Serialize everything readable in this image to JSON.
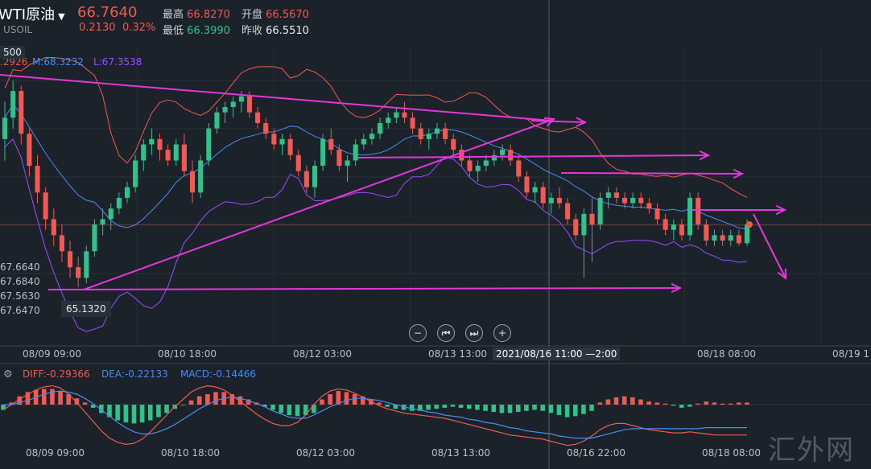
{
  "header": {
    "title": "WTI原油",
    "code": "USOIL",
    "last": "66.7640",
    "change": "0.2130",
    "change_pct": "0.32%",
    "high_label": "最高",
    "high": "66.8270",
    "open_label": "开盘",
    "open": "66.5670",
    "low_label": "最低",
    "low": "66.3990",
    "prev_label": "昨收",
    "prev": "66.5510",
    "boll_u": ".2926",
    "boll_m": "M:68.3232",
    "boll_l": "L:67.3538"
  },
  "price_marks": {
    "high_mark": "500",
    "low_mark": "65.1320"
  },
  "left_axis_labels": [
    "67.6640",
    "67.6840",
    "67.5630",
    "67.6470"
  ],
  "controls": {
    "zoom_out": "−",
    "prev": "⏮",
    "next": "⏭",
    "zoom_in": "+"
  },
  "crosshair_time": "2021/08/16 11:00",
  "crosshair_suffix": "—2:00",
  "macd_header": {
    "diff": "DIFF:-0.29366",
    "dea": "DEA:-0.22133",
    "macd": "MACD:-0.14466"
  },
  "watermark": "汇外网",
  "colors": {
    "bg": "#1b2229",
    "up": "#2fc28a",
    "down": "#f05a52",
    "mid": "#4a8cf0",
    "lower": "#9b4dff",
    "annotation": "#e636d9"
  },
  "chart_data": [
    {
      "type": "candlestick",
      "title": "WTI原油 USOIL",
      "indicators": [
        "BOLL upper",
        "BOLL mid",
        "BOLL lower"
      ],
      "x_tick_labels": [
        "08/09 09:00",
        "08/10 18:00",
        "08/12 03:00",
        "08/13 13:00",
        "08/16 22:00",
        "08/18 08:00",
        "08/19 1"
      ],
      "annotation_points": {
        "low": 65.132
      },
      "ohlc": [
        [
          67.9,
          68.6,
          67.5,
          68.3
        ],
        [
          68.3,
          69.0,
          68.1,
          68.8
        ],
        [
          68.8,
          68.9,
          67.8,
          68.0
        ],
        [
          68.0,
          68.1,
          67.2,
          67.4
        ],
        [
          67.4,
          67.6,
          66.7,
          66.9
        ],
        [
          66.9,
          67.0,
          66.2,
          66.4
        ],
        [
          66.4,
          66.6,
          65.9,
          66.1
        ],
        [
          66.1,
          66.3,
          65.6,
          65.8
        ],
        [
          65.8,
          66.0,
          65.3,
          65.5
        ],
        [
          65.5,
          65.7,
          65.13,
          65.3
        ],
        [
          65.3,
          65.9,
          65.2,
          65.8
        ],
        [
          65.8,
          66.4,
          65.7,
          66.3
        ],
        [
          66.3,
          66.6,
          66.1,
          66.4
        ],
        [
          66.4,
          66.7,
          66.2,
          66.6
        ],
        [
          66.6,
          66.9,
          66.5,
          66.8
        ],
        [
          66.8,
          67.1,
          66.7,
          67.0
        ],
        [
          67.0,
          67.6,
          66.9,
          67.5
        ],
        [
          67.5,
          67.9,
          67.3,
          67.8
        ],
        [
          67.8,
          68.1,
          67.6,
          67.9
        ],
        [
          67.9,
          68.0,
          67.5,
          67.7
        ],
        [
          67.7,
          67.8,
          67.4,
          67.5
        ],
        [
          67.5,
          67.9,
          67.4,
          67.8
        ],
        [
          67.8,
          68.0,
          67.2,
          67.3
        ],
        [
          67.3,
          67.5,
          66.7,
          66.9
        ],
        [
          66.9,
          67.6,
          66.8,
          67.5
        ],
        [
          67.5,
          68.2,
          67.4,
          68.1
        ],
        [
          68.1,
          68.5,
          68.0,
          68.4
        ],
        [
          68.4,
          68.6,
          68.2,
          68.5
        ],
        [
          68.5,
          68.7,
          68.3,
          68.6
        ],
        [
          68.6,
          68.8,
          68.4,
          68.7
        ],
        [
          68.7,
          68.8,
          68.3,
          68.4
        ],
        [
          68.4,
          68.5,
          68.1,
          68.2
        ],
        [
          68.2,
          68.3,
          67.9,
          68.0
        ],
        [
          68.0,
          68.1,
          67.7,
          67.8
        ],
        [
          67.8,
          68.0,
          67.6,
          67.9
        ],
        [
          67.9,
          68.0,
          67.5,
          67.6
        ],
        [
          67.6,
          67.7,
          67.2,
          67.3
        ],
        [
          67.3,
          67.4,
          66.9,
          67.0
        ],
        [
          67.0,
          67.5,
          66.8,
          67.4
        ],
        [
          67.4,
          68.0,
          67.3,
          67.9
        ],
        [
          67.9,
          68.1,
          67.6,
          67.7
        ],
        [
          67.7,
          67.8,
          67.3,
          67.4
        ],
        [
          67.4,
          67.6,
          67.1,
          67.5
        ],
        [
          67.5,
          67.9,
          67.4,
          67.8
        ],
        [
          67.8,
          68.0,
          67.7,
          67.9
        ],
        [
          67.9,
          68.1,
          67.8,
          68.0
        ],
        [
          68.0,
          68.3,
          67.9,
          68.2
        ],
        [
          68.2,
          68.4,
          68.1,
          68.3
        ],
        [
          68.3,
          68.5,
          68.2,
          68.4
        ],
        [
          68.4,
          68.6,
          68.2,
          68.3
        ],
        [
          68.3,
          68.4,
          68.0,
          68.1
        ],
        [
          68.1,
          68.2,
          67.8,
          67.9
        ],
        [
          67.9,
          68.1,
          67.7,
          68.0
        ],
        [
          68.0,
          68.2,
          67.9,
          68.1
        ],
        [
          68.1,
          68.2,
          67.8,
          67.9
        ],
        [
          67.9,
          68.0,
          67.6,
          67.7
        ],
        [
          67.7,
          67.8,
          67.4,
          67.5
        ],
        [
          67.5,
          67.6,
          67.2,
          67.3
        ],
        [
          67.3,
          67.5,
          67.1,
          67.4
        ],
        [
          67.4,
          67.6,
          67.3,
          67.5
        ],
        [
          67.5,
          67.7,
          67.4,
          67.6
        ],
        [
          67.6,
          67.8,
          67.5,
          67.7
        ],
        [
          67.7,
          67.8,
          67.4,
          67.5
        ],
        [
          67.5,
          67.6,
          67.1,
          67.2
        ],
        [
          67.2,
          67.3,
          66.8,
          66.9
        ],
        [
          66.9,
          67.1,
          66.7,
          67.0
        ],
        [
          67.0,
          67.1,
          66.6,
          66.7
        ],
        [
          66.7,
          66.9,
          66.5,
          66.8
        ],
        [
          66.8,
          67.0,
          66.6,
          66.7
        ],
        [
          66.7,
          66.8,
          66.3,
          66.4
        ],
        [
          66.4,
          66.5,
          66.0,
          66.1
        ],
        [
          66.1,
          66.6,
          65.3,
          66.5
        ],
        [
          66.5,
          66.8,
          65.6,
          66.3
        ],
        [
          66.3,
          66.9,
          66.2,
          66.8
        ],
        [
          66.8,
          67.0,
          66.6,
          66.9
        ],
        [
          66.9,
          67.0,
          66.7,
          66.8
        ],
        [
          66.8,
          66.9,
          66.6,
          66.7
        ],
        [
          66.7,
          66.9,
          66.6,
          66.8
        ],
        [
          66.8,
          66.9,
          66.6,
          66.7
        ],
        [
          66.7,
          66.8,
          66.5,
          66.6
        ],
        [
          66.6,
          66.7,
          66.3,
          66.4
        ],
        [
          66.4,
          66.5,
          66.1,
          66.2
        ],
        [
          66.2,
          66.4,
          66.0,
          66.3
        ],
        [
          66.3,
          66.4,
          66.0,
          66.1
        ],
        [
          66.1,
          66.9,
          66.0,
          66.8
        ],
        [
          66.8,
          66.9,
          66.2,
          66.3
        ],
        [
          66.3,
          66.4,
          65.9,
          66.0
        ],
        [
          66.0,
          66.2,
          65.9,
          66.1
        ],
        [
          66.1,
          66.2,
          65.9,
          66.0
        ],
        [
          66.0,
          66.2,
          65.9,
          66.1
        ],
        [
          66.1,
          66.2,
          65.9,
          65.95
        ],
        [
          65.95,
          66.4,
          65.9,
          66.3
        ]
      ]
    },
    {
      "type": "bar",
      "title": "MACD",
      "series": [
        {
          "name": "MACD",
          "values": [
            -0.05,
            0.02,
            0.08,
            0.12,
            0.14,
            0.15,
            0.15,
            0.13,
            0.1,
            0.06,
            0.02,
            -0.03,
            -0.08,
            -0.12,
            -0.15,
            -0.17,
            -0.18,
            -0.17,
            -0.15,
            -0.12,
            -0.08,
            -0.04,
            0.0,
            0.04,
            0.08,
            0.1,
            0.12,
            0.12,
            0.1,
            0.08,
            0.05,
            0.02,
            -0.02,
            -0.05,
            -0.08,
            -0.1,
            -0.11,
            -0.1,
            -0.08,
            0.05,
            0.1,
            0.13,
            0.12,
            0.1,
            0.08,
            0.05,
            0.02,
            -0.02,
            -0.04,
            -0.05,
            -0.06,
            -0.06,
            -0.05,
            -0.04,
            -0.03,
            -0.02,
            -0.03,
            -0.04,
            -0.05,
            -0.06,
            -0.07,
            -0.08,
            -0.08,
            -0.07,
            -0.06,
            -0.05,
            -0.06,
            -0.08,
            -0.1,
            -0.12,
            -0.11,
            -0.09,
            -0.06,
            0.02,
            0.05,
            0.07,
            0.08,
            0.07,
            0.05,
            0.03,
            0.02,
            0.01,
            -0.01,
            -0.03,
            -0.02,
            0.01,
            0.03,
            0.02,
            0.01,
            0.01,
            0.02,
            0.02
          ]
        },
        {
          "name": "DIFF",
          "values": [
            -0.05,
            0.0,
            0.05,
            0.1,
            0.14,
            0.17,
            0.18,
            0.16,
            0.1,
            0.02,
            -0.07,
            -0.16,
            -0.25,
            -0.32,
            -0.36,
            -0.38,
            -0.37,
            -0.33,
            -0.26,
            -0.18,
            -0.1,
            -0.02,
            0.05,
            0.12,
            0.16,
            0.18,
            0.17,
            0.14,
            0.09,
            0.03,
            -0.03,
            -0.09,
            -0.14,
            -0.18,
            -0.2,
            -0.2,
            -0.17,
            -0.1,
            0.0,
            0.08,
            0.13,
            0.15,
            0.14,
            0.11,
            0.07,
            0.03,
            -0.01,
            -0.04,
            -0.06,
            -0.08,
            -0.09,
            -0.1,
            -0.11,
            -0.12,
            -0.13,
            -0.15,
            -0.17,
            -0.19,
            -0.21,
            -0.23,
            -0.25,
            -0.27,
            -0.29,
            -0.3,
            -0.31,
            -0.32,
            -0.33,
            -0.35,
            -0.37,
            -0.39,
            -0.38,
            -0.35,
            -0.3,
            -0.24,
            -0.2,
            -0.18,
            -0.18,
            -0.2,
            -0.22,
            -0.24,
            -0.25,
            -0.26,
            -0.27,
            -0.27,
            -0.26,
            -0.27,
            -0.28,
            -0.29,
            -0.29,
            -0.29,
            -0.29,
            -0.29
          ]
        },
        {
          "name": "DEA",
          "values": [
            0.0,
            0.0,
            0.02,
            0.04,
            0.07,
            0.1,
            0.12,
            0.13,
            0.12,
            0.1,
            0.06,
            0.01,
            -0.05,
            -0.11,
            -0.17,
            -0.22,
            -0.26,
            -0.28,
            -0.28,
            -0.26,
            -0.23,
            -0.19,
            -0.14,
            -0.09,
            -0.04,
            0.0,
            0.04,
            0.06,
            0.07,
            0.06,
            0.04,
            0.01,
            -0.02,
            -0.06,
            -0.09,
            -0.12,
            -0.13,
            -0.13,
            -0.1,
            -0.06,
            -0.02,
            0.01,
            0.04,
            0.06,
            0.06,
            0.05,
            0.04,
            0.02,
            0.0,
            -0.02,
            -0.04,
            -0.05,
            -0.07,
            -0.08,
            -0.1,
            -0.11,
            -0.12,
            -0.14,
            -0.15,
            -0.17,
            -0.18,
            -0.2,
            -0.22,
            -0.23,
            -0.25,
            -0.26,
            -0.27,
            -0.28,
            -0.3,
            -0.31,
            -0.32,
            -0.32,
            -0.32,
            -0.3,
            -0.28,
            -0.26,
            -0.24,
            -0.23,
            -0.23,
            -0.23,
            -0.23,
            -0.23,
            -0.23,
            -0.23,
            -0.23,
            -0.23,
            -0.22,
            -0.22,
            -0.22,
            -0.22,
            -0.22,
            -0.22
          ]
        }
      ],
      "x_tick_labels": [
        "08/09 09:00",
        "08/10 18:00",
        "08/12 03:00",
        "08/13 13:00",
        "08/16 22:00",
        "08/18 08:00"
      ]
    }
  ]
}
